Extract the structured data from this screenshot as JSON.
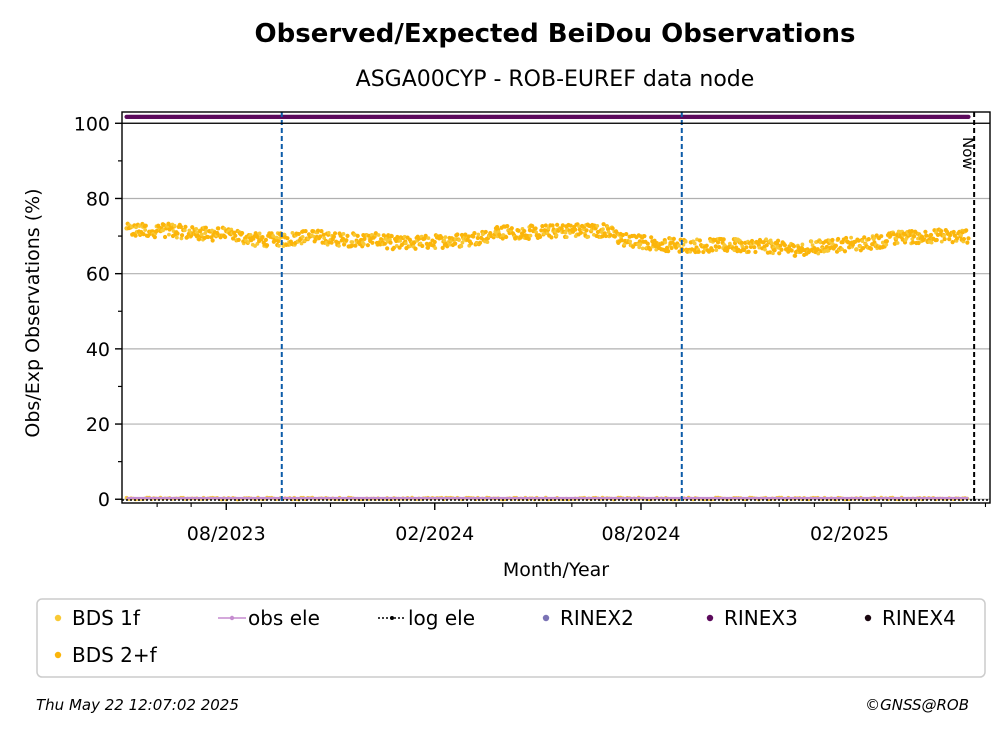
{
  "title": "Observed/Expected BeiDou Observations",
  "subtitle": "ASGA00CYP - ROB-EUREF data node",
  "now_label": "Now",
  "footer": {
    "timestamp": "Thu May 22 12:07:02 2025",
    "copyright": "©GNSS@ROB"
  },
  "colors": {
    "bds1f": "#f9c935",
    "bds2f": "#fbb50a",
    "obs_ele": "#c58ccf",
    "log_ele": "#000000",
    "rinex2": "#7b73b5",
    "rinex3": "#5c0a5c",
    "rinex4": "#1a0710",
    "vline": "#0c5ba8",
    "grid": "#b0b0b0"
  },
  "legend": [
    {
      "label": "BDS 1f",
      "key": "bds1f",
      "kind": "dot"
    },
    {
      "label": "obs ele",
      "key": "obs_ele",
      "kind": "line"
    },
    {
      "label": "log ele",
      "key": "log_ele",
      "kind": "dotted"
    },
    {
      "label": "RINEX2",
      "key": "rinex2",
      "kind": "dot"
    },
    {
      "label": "RINEX3",
      "key": "rinex3",
      "kind": "dot"
    },
    {
      "label": "RINEX4",
      "key": "rinex4",
      "kind": "dot"
    },
    {
      "label": "BDS 2+f",
      "key": "bds2f",
      "kind": "dot"
    }
  ],
  "chart_data": {
    "type": "scatter",
    "title": "Observed/Expected BeiDou Observations",
    "subtitle": "ASGA00CYP - ROB-EUREF data node",
    "xlabel": "Month/Year",
    "ylabel": "Obs/Exp Observations (%)",
    "xlim": [
      "2023-05-01",
      "2025-06-05"
    ],
    "ylim": [
      -1,
      103
    ],
    "y_ticks": [
      0,
      20,
      40,
      60,
      80,
      100
    ],
    "x_ticks": [
      {
        "date": "2023-08-01",
        "label": "08/2023"
      },
      {
        "date": "2024-02-01",
        "label": "02/2024"
      },
      {
        "date": "2024-08-01",
        "label": "08/2024"
      },
      {
        "date": "2025-02-01",
        "label": "02/2025"
      }
    ],
    "grid": "horizontal",
    "legend_position": "below",
    "vertical_markers": [
      "2023-09-19",
      "2024-09-06"
    ],
    "now_marker": "2025-05-22",
    "series": [
      {
        "name": "BDS 2+f",
        "key": "bds2f",
        "date_range": [
          "2023-05-05",
          "2025-05-17"
        ],
        "values_approx": [
          {
            "date": "2023-05-05",
            "value": 71.5
          },
          {
            "date": "2023-06-15",
            "value": 71.5
          },
          {
            "date": "2023-07-05",
            "value": 70.5
          },
          {
            "date": "2023-08-01",
            "value": 70.5
          },
          {
            "date": "2023-08-25",
            "value": 69.0
          },
          {
            "date": "2023-09-19",
            "value": 69.0
          },
          {
            "date": "2023-10-15",
            "value": 70.0
          },
          {
            "date": "2023-11-10",
            "value": 69.0
          },
          {
            "date": "2023-12-10",
            "value": 69.0
          },
          {
            "date": "2024-01-01",
            "value": 68.0
          },
          {
            "date": "2024-02-01",
            "value": 68.5
          },
          {
            "date": "2024-03-01",
            "value": 69.0
          },
          {
            "date": "2024-04-01",
            "value": 71.0
          },
          {
            "date": "2024-05-01",
            "value": 71.0
          },
          {
            "date": "2024-06-01",
            "value": 71.5
          },
          {
            "date": "2024-07-01",
            "value": 71.5
          },
          {
            "date": "2024-07-15",
            "value": 69.0
          },
          {
            "date": "2024-08-15",
            "value": 68.0
          },
          {
            "date": "2024-09-06",
            "value": 67.5
          },
          {
            "date": "2024-10-15",
            "value": 67.5
          },
          {
            "date": "2024-11-15",
            "value": 67.5
          },
          {
            "date": "2024-12-15",
            "value": 66.5
          },
          {
            "date": "2025-01-15",
            "value": 67.5
          },
          {
            "date": "2025-02-15",
            "value": 68.0
          },
          {
            "date": "2025-03-15",
            "value": 69.5
          },
          {
            "date": "2025-04-15",
            "value": 70.0
          },
          {
            "date": "2025-05-17",
            "value": 70.0
          }
        ],
        "scatter_range": 1.8
      },
      {
        "name": "BDS 1f",
        "key": "bds1f",
        "date_range": [
          "2023-05-05",
          "2025-05-17"
        ],
        "values_approx": [
          {
            "date": "2023-05-05",
            "value": 0.2
          },
          {
            "date": "2025-05-17",
            "value": 0.2
          }
        ]
      },
      {
        "name": "RINEX3",
        "key": "rinex3",
        "date_range": [
          "2023-05-05",
          "2025-05-17"
        ],
        "constant_value": 101.7
      },
      {
        "name": "obs ele",
        "key": "obs_ele",
        "date_range": [
          "2023-05-05",
          "2025-05-17"
        ],
        "constant_value": 0.3
      },
      {
        "name": "log ele",
        "key": "log_ele",
        "date_range": [
          "2023-05-01",
          "2025-06-05"
        ],
        "constant_value": -0.2
      }
    ]
  }
}
